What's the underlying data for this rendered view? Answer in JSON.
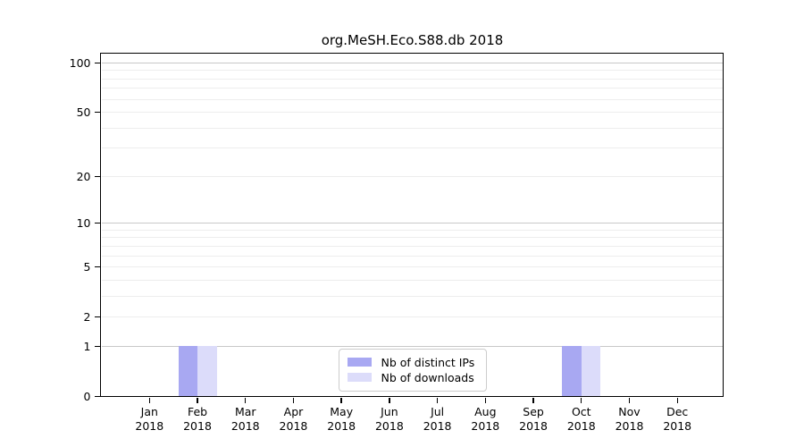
{
  "chart_data": {
    "type": "bar",
    "title": "org.MeSH.Eco.S88.db 2018",
    "categories": [
      "Jan 2018",
      "Feb 2018",
      "Mar 2018",
      "Apr 2018",
      "May 2018",
      "Jun 2018",
      "Jul 2018",
      "Aug 2018",
      "Sep 2018",
      "Oct 2018",
      "Nov 2018",
      "Dec 2018"
    ],
    "series": [
      {
        "name": "Nb of distinct IPs",
        "color": "#a8a8f2",
        "values": [
          0,
          1,
          0,
          0,
          0,
          0,
          0,
          0,
          0,
          1,
          0,
          0
        ]
      },
      {
        "name": "Nb of downloads",
        "color": "#dcdcfa",
        "values": [
          0,
          1,
          0,
          0,
          0,
          0,
          0,
          0,
          0,
          1,
          0,
          0
        ]
      }
    ],
    "xlabel": "",
    "ylabel": "",
    "yscale": "log1p",
    "ylim": [
      0,
      113
    ],
    "y_tick_labels": [
      100,
      50,
      20,
      10,
      5,
      2,
      1,
      0
    ],
    "y_major_gridlines": [
      1,
      10,
      100
    ],
    "y_minor_gridlines": [
      2,
      3,
      4,
      5,
      6,
      7,
      8,
      9,
      20,
      30,
      40,
      50,
      60,
      70,
      80,
      90
    ],
    "grid": "horizontal",
    "legend_position": "lower center",
    "colors": {
      "background": "#ffffff",
      "axis": "#000000",
      "major_grid": "#c8c8c8",
      "minor_grid": "#ededed"
    }
  }
}
